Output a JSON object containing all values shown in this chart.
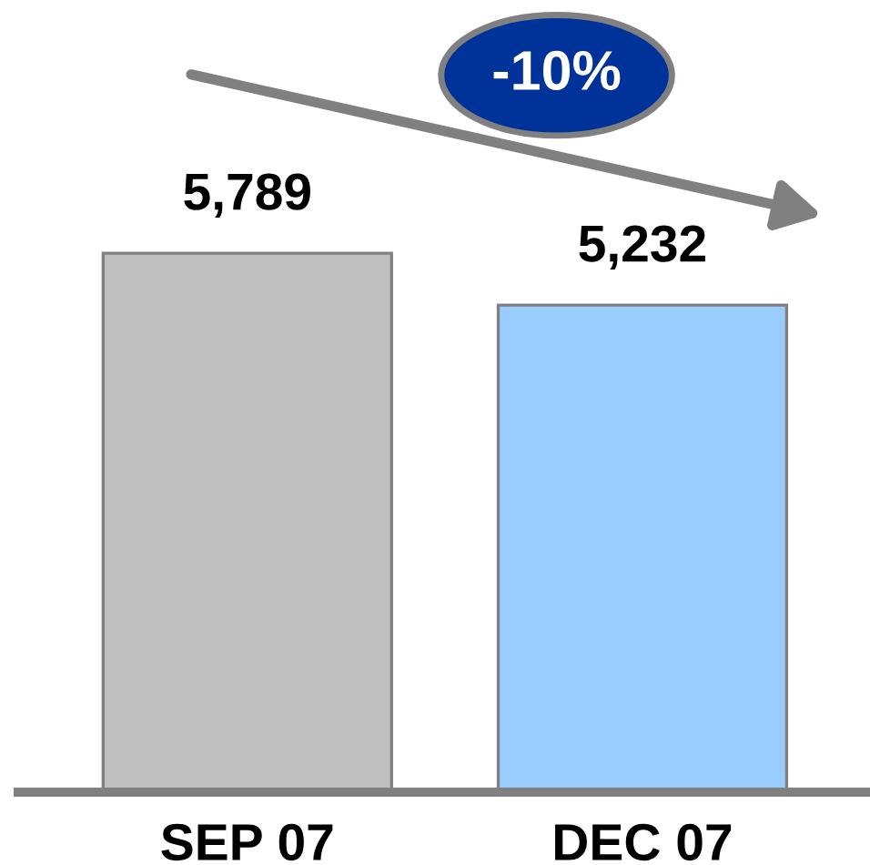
{
  "chart_data": {
    "type": "bar",
    "categories": [
      "SEP 07",
      "DEC 07"
    ],
    "values": [
      5789,
      5232
    ],
    "colors": [
      "#c0c0c0",
      "#99ccff"
    ],
    "value_labels": [
      "5,789",
      "5,232"
    ],
    "annotations": [
      "-10%"
    ],
    "tick_labels": "x"
  }
}
